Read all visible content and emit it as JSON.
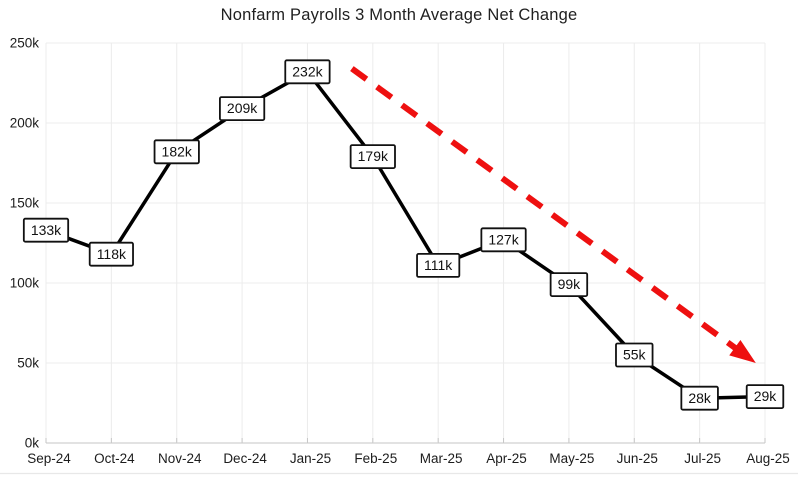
{
  "page": {
    "background_color": "#ffffff",
    "divider_color": "#e8e8e8"
  },
  "chart_data": {
    "type": "line",
    "title": "Nonfarm Payrolls 3 Month Average Net Change",
    "categories": [
      "Sep-24",
      "Oct-24",
      "Nov-24",
      "Dec-24",
      "Jan-25",
      "Feb-25",
      "Mar-25",
      "Apr-25",
      "May-25",
      "Jun-25",
      "Jul-25",
      "Aug-25"
    ],
    "values": [
      133,
      118,
      182,
      209,
      232,
      179,
      111,
      127,
      99,
      55,
      28,
      29
    ],
    "point_labels": [
      "133k",
      "118k",
      "182k",
      "209k",
      "232k",
      "179k",
      "111k",
      "127k",
      "99k",
      "55k",
      "28k",
      "29k"
    ],
    "unit": "k",
    "xlabel": "",
    "ylabel": "",
    "ylim": [
      0,
      250
    ],
    "ytick_values": [
      0,
      50,
      100,
      150,
      200,
      250
    ],
    "ytick_labels": [
      "0k",
      "50k",
      "100k",
      "150k",
      "200k",
      "250k"
    ],
    "grid": true,
    "legend_position": "none",
    "line_color": "#000000",
    "label_box": {
      "fill": "#ffffff",
      "border_color": "#111111"
    },
    "axis_text_color": "#1c1c1c",
    "gridline_color": "#ececec",
    "axis_line_color": "#c6c6c6",
    "annotation_arrow": {
      "style": "dashed",
      "color": "#ee1010",
      "meaning": "downward trend",
      "from": {
        "x_index": 4.68,
        "value_k": 234
      },
      "to": {
        "x_index": 10.86,
        "value_k": 50
      }
    }
  }
}
